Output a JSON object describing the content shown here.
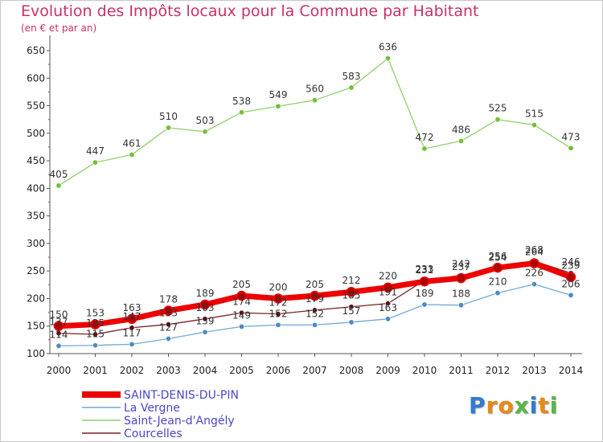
{
  "header": {
    "title": "Evolution des Impôts locaux pour la Commune par Habitant",
    "subtitle": "(en € et par an)"
  },
  "logo": {
    "letters": [
      "P",
      "r",
      "o",
      "x",
      "i",
      "t",
      "i"
    ],
    "colors": [
      "#2e7dd1",
      "#e98a16",
      "#e98a16",
      "#58b847",
      "#2e7dd1",
      "#e98a16",
      "#58b847"
    ]
  },
  "chart_data": {
    "type": "line",
    "title": "Evolution des Impôts locaux pour la Commune par Habitant",
    "subtitle": "(en € et par an)",
    "xlabel": "",
    "ylabel": "",
    "x": [
      "2000",
      "2001",
      "2002",
      "2003",
      "2004",
      "2005",
      "2006",
      "2007",
      "2008",
      "2009",
      "2010",
      "2011",
      "2012",
      "2013",
      "2014"
    ],
    "ylim": [
      100,
      650
    ],
    "yticks": [
      100,
      150,
      200,
      250,
      300,
      350,
      400,
      450,
      500,
      550,
      600,
      650
    ],
    "grid": false,
    "legend_position": "bottom-left",
    "series": [
      {
        "name": "Saint-Jean-d'Angély",
        "color": "#8fd06a",
        "marker": "#6fc13a",
        "width": 1.3,
        "values": [
          405,
          447,
          461,
          510,
          503,
          538,
          549,
          560,
          583,
          636,
          472,
          486,
          525,
          515,
          473
        ]
      },
      {
        "name": "La Vergne",
        "color": "#6fa8d8",
        "marker": "#4a8cc6",
        "width": 1.3,
        "values": [
          114,
          115,
          117,
          127,
          139,
          149,
          152,
          152,
          157,
          163,
          189,
          188,
          210,
          226,
          206
        ]
      },
      {
        "name": "Courcelles",
        "color": "#7a1f24",
        "marker": "#5a1015",
        "width": 1.3,
        "values": [
          137,
          135,
          147,
          153,
          163,
          174,
          172,
          179,
          185,
          191,
          233,
          242,
          254,
          268,
          246
        ]
      },
      {
        "name": "SAINT-DENIS-DU-PIN",
        "color": "#ee0000",
        "marker": "#b00000",
        "width": 7,
        "values": [
          150,
          153,
          163,
          178,
          189,
          205,
          200,
          205,
          212,
          220,
          231,
          237,
          256,
          264,
          239
        ]
      }
    ]
  }
}
